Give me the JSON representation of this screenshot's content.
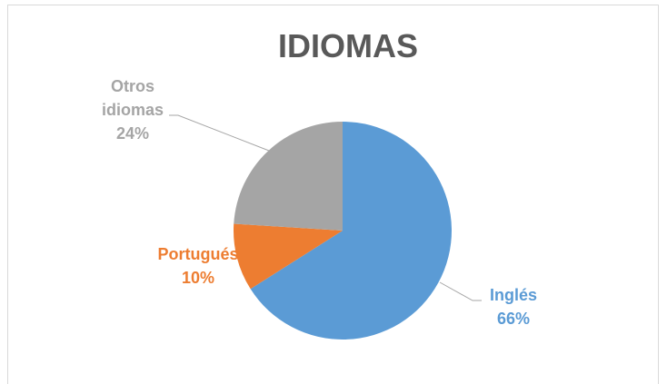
{
  "chart_data": {
    "type": "pie",
    "title": "IDIOMAS",
    "categories": [
      "Inglés",
      "Portugués",
      "Otros idiomas"
    ],
    "values": [
      66,
      10,
      24
    ],
    "value_labels": [
      "66%",
      "10%",
      "24%"
    ],
    "colors": [
      "#5b9bd5",
      "#ed7d31",
      "#a5a5a5"
    ]
  }
}
